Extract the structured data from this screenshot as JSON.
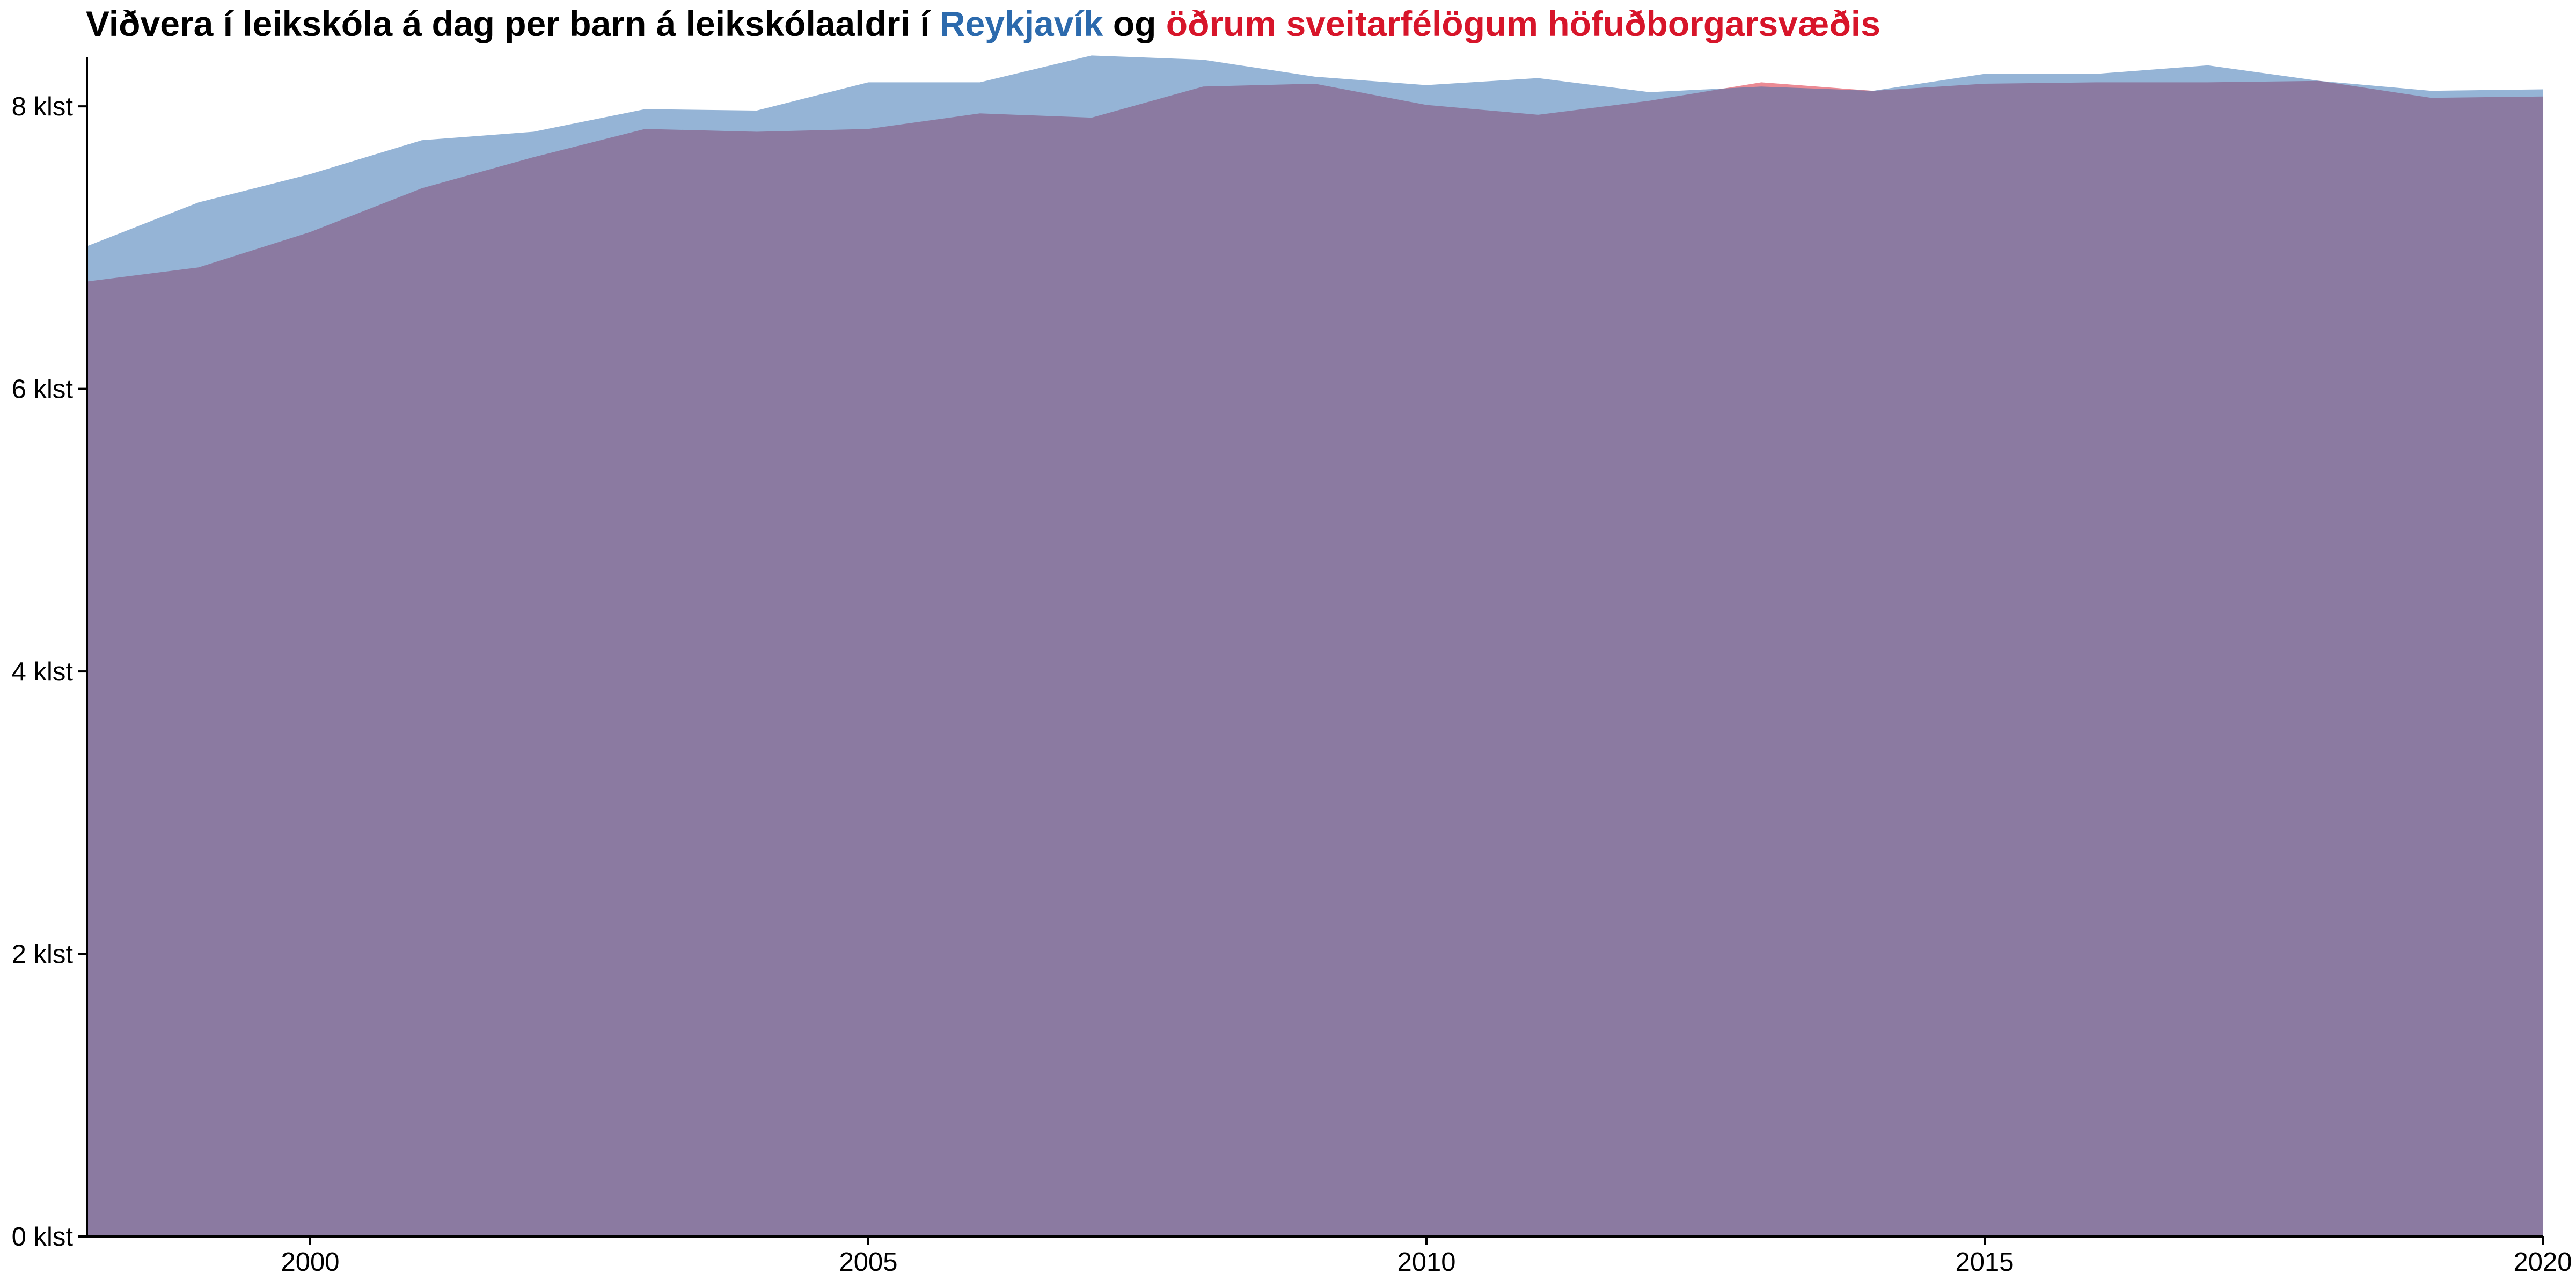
{
  "chart_data": {
    "type": "area",
    "title_parts": [
      {
        "text": "Viðvera í leikskóla á dag per barn á leikskólaaldri í ",
        "color": "#000000"
      },
      {
        "text": "Reykjavík",
        "color": "#2c6aad"
      },
      {
        "text": " og ",
        "color": "#000000"
      },
      {
        "text": "öðrum sveitarfélögum höfuðborgarsvæðis",
        "color": "#d7152a"
      }
    ],
    "xlabel": "",
    "ylabel": "",
    "xlim": [
      1998,
      2020
    ],
    "ylim": [
      0,
      8.35
    ],
    "x_ticks": [
      2000,
      2005,
      2010,
      2015,
      2020
    ],
    "y_ticks": [
      0,
      2,
      4,
      6,
      8
    ],
    "y_tick_suffix": " klst",
    "grid": false,
    "legend": "none",
    "x": [
      1998,
      1999,
      2000,
      2001,
      2002,
      2003,
      2004,
      2005,
      2006,
      2007,
      2008,
      2009,
      2010,
      2011,
      2012,
      2013,
      2014,
      2015,
      2016,
      2017,
      2018,
      2019,
      2020
    ],
    "series": [
      {
        "color": "#d7152a",
        "values": [
          6.76,
          6.86,
          7.11,
          7.42,
          7.64,
          7.84,
          7.82,
          7.84,
          7.95,
          7.92,
          8.14,
          8.16,
          8.01,
          7.94,
          8.04,
          8.17,
          8.11,
          8.16,
          8.17,
          8.17,
          8.18,
          8.06,
          8.07
        ]
      },
      {
        "color": "#2c6aad",
        "values": [
          7.01,
          7.32,
          7.52,
          7.76,
          7.82,
          7.98,
          7.97,
          8.17,
          8.17,
          8.36,
          8.33,
          8.21,
          8.15,
          8.2,
          8.1,
          8.14,
          8.11,
          8.23,
          8.23,
          8.29,
          8.18,
          8.11,
          8.12
        ]
      }
    ]
  }
}
